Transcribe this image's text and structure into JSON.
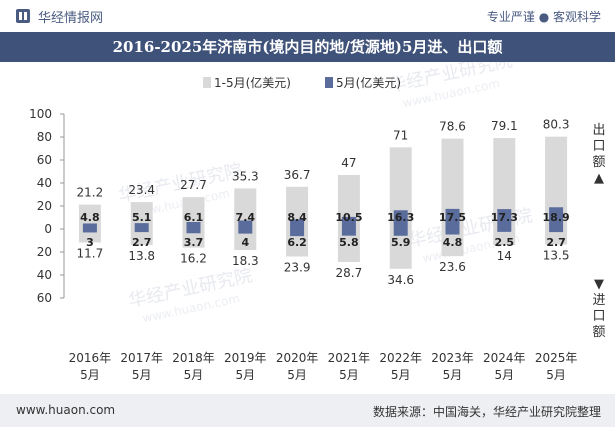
{
  "header": {
    "brand": "华经情报网",
    "tags": "专业严谨 ● 客观科学"
  },
  "title": "2016-2025年济南市(境内目的地/货源地)5月进、出口额",
  "legend": {
    "series1": "1-5月(亿美元)",
    "series2": "5月(亿美元)"
  },
  "side_labels": {
    "export": [
      "出",
      "口",
      "额",
      "▲"
    ],
    "import": [
      "▼",
      "进",
      "口",
      "额"
    ]
  },
  "watermark": {
    "text": "华经产业研究院",
    "url": "www.huaon.com"
  },
  "footer": {
    "url": "www.huaon.com",
    "source": "数据来源：中国海关，华经产业研究院整理"
  },
  "colors": {
    "cumulative_bar": "#d9d9d9",
    "month_bar": "#5a6c9c",
    "title_band": "#3f5279",
    "footer_band": "#eeeff2"
  },
  "chart_data": {
    "type": "bar",
    "categories": [
      [
        "2016年",
        "5月"
      ],
      [
        "2017年",
        "5月"
      ],
      [
        "2018年",
        "5月"
      ],
      [
        "2019年",
        "5月"
      ],
      [
        "2020年",
        "5月"
      ],
      [
        "2021年",
        "5月"
      ],
      [
        "2022年",
        "5月"
      ],
      [
        "2023年",
        "5月"
      ],
      [
        "2024年",
        "5月"
      ],
      [
        "2025年",
        "5月"
      ]
    ],
    "ylim": [
      -60,
      100
    ],
    "yticks": [
      {
        "value": 100,
        "label": "100"
      },
      {
        "value": 80,
        "label": "80"
      },
      {
        "value": 60,
        "label": "60"
      },
      {
        "value": 40,
        "label": "40"
      },
      {
        "value": 20,
        "label": "20"
      },
      {
        "value": 0,
        "label": "0"
      },
      {
        "value": -20,
        "label": "20"
      },
      {
        "value": -40,
        "label": "40"
      },
      {
        "value": -60,
        "label": "60"
      }
    ],
    "series": [
      {
        "name": "1-5月(亿美元)",
        "export": [
          21.2,
          23.4,
          27.7,
          35.3,
          36.7,
          47,
          71,
          78.6,
          79.1,
          80.3
        ],
        "import": [
          11.7,
          13.8,
          16.2,
          18.3,
          23.9,
          28.7,
          34.6,
          23.6,
          14,
          13.5
        ]
      },
      {
        "name": "5月(亿美元)",
        "export": [
          4.8,
          5.1,
          6.1,
          7.4,
          8.4,
          10.5,
          16.3,
          17.5,
          17.3,
          18.9
        ],
        "import": [
          3,
          2.7,
          3.7,
          4,
          6.2,
          5.8,
          5.9,
          4.8,
          2.5,
          2.7
        ]
      }
    ]
  }
}
